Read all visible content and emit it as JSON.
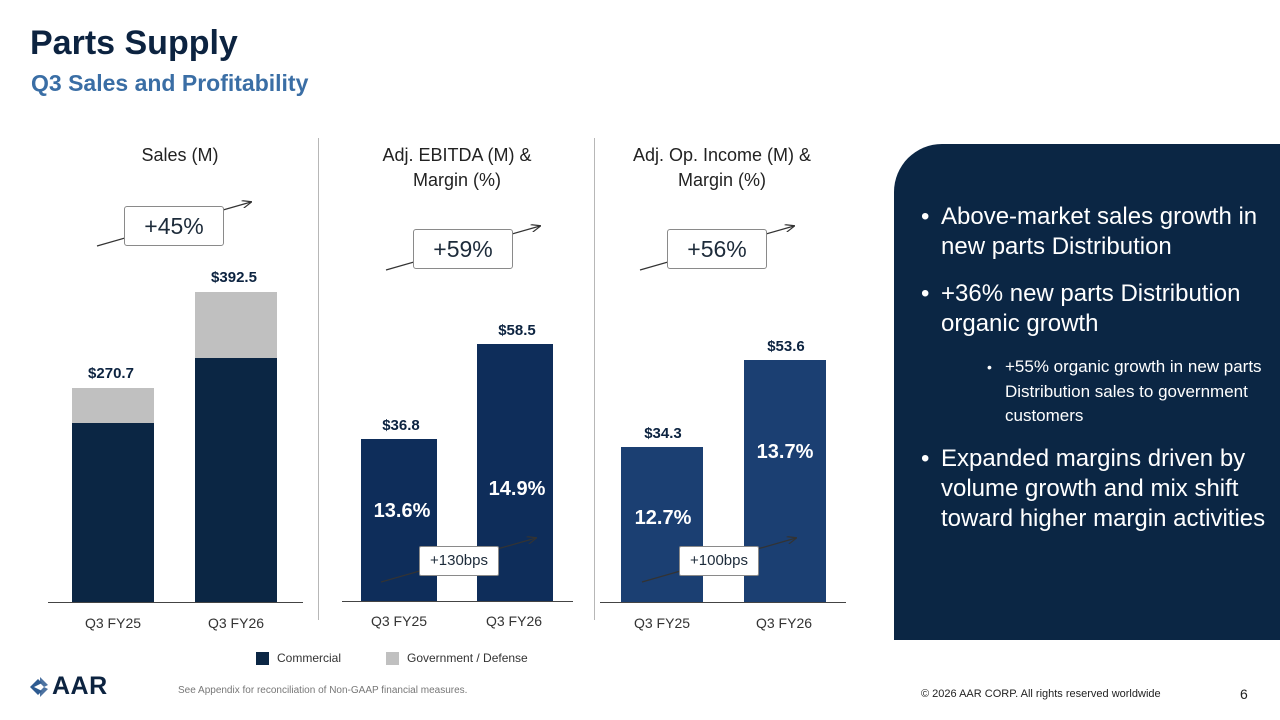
{
  "header": {
    "title": "Parts Supply",
    "subtitle": "Q3 Sales and Profitability"
  },
  "colors": {
    "commercial": "#0b2644",
    "government": "#c0c0c0",
    "ebitda_bar": "#0e2d5a",
    "opinc_bar": "#1b3f72",
    "panel": "#0b2644",
    "accent": "#3a6ea5"
  },
  "chart_data": [
    {
      "type": "bar",
      "stacked": true,
      "title": "Sales (M)",
      "categories": [
        "Q3 FY25",
        "Q3 FY26"
      ],
      "series": [
        {
          "name": "Commercial",
          "values": [
            227,
            309
          ]
        },
        {
          "name": "Government / Defense",
          "values": [
            43.7,
            83.5
          ]
        }
      ],
      "totals": [
        "$270.7",
        "$392.5"
      ],
      "ylim": [
        0,
        400
      ],
      "growth_label": "+45%"
    },
    {
      "type": "bar",
      "title": "Adj. EBITDA (M) & Margin (%)",
      "categories": [
        "Q3 FY25",
        "Q3 FY26"
      ],
      "values": [
        36.8,
        58.5
      ],
      "value_labels": [
        "$36.8",
        "$58.5"
      ],
      "margins": [
        "13.6%",
        "14.9%"
      ],
      "ylim": [
        0,
        65
      ],
      "growth_label": "+59%",
      "margin_change_label": "+130bps"
    },
    {
      "type": "bar",
      "title": "Adj. Op. Income (M) & Margin (%)",
      "categories": [
        "Q3 FY25",
        "Q3 FY26"
      ],
      "values": [
        34.3,
        53.6
      ],
      "value_labels": [
        "$34.3",
        "$53.6"
      ],
      "margins": [
        "12.7%",
        "13.7%"
      ],
      "ylim": [
        0,
        65
      ],
      "growth_label": "+56%",
      "margin_change_label": "+100bps"
    }
  ],
  "legend": {
    "commercial": "Commercial",
    "government": "Government / Defense"
  },
  "panel": {
    "bullets": [
      "Above-market sales growth in new parts Distribution",
      "+36% new parts Distribution organic growth",
      "Expanded margins driven by volume growth and mix shift toward higher margin activities"
    ],
    "sub_bullet": "+55% organic growth in new parts Distribution sales to government customers",
    "bullet_marker": "•"
  },
  "footer": {
    "footnote": "See Appendix for reconciliation of Non-GAAP financial measures.",
    "copyright": "© 2026 AAR CORP. All rights reserved worldwide",
    "page_number": "6",
    "logo_text": "AAR"
  }
}
